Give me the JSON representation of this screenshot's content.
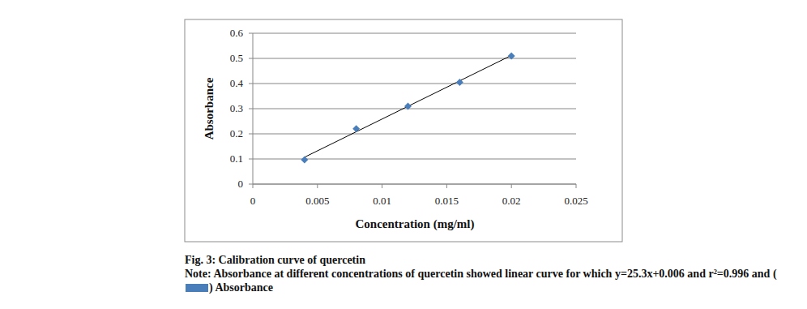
{
  "chart_data": {
    "type": "scatter",
    "xlabel": "Concentration (mg/ml)",
    "ylabel": "Absorbance",
    "caption": "Fig. 3: Calibration curve of quercetin",
    "note": "Note: Absorbance at different concentrations of quercetin showed linear curve for which y=25.3x+0.006 and r²=0.996 and (",
    "note_close": ")",
    "xlim": [
      0,
      0.025
    ],
    "xticks": [
      0,
      0.005,
      0.01,
      0.015,
      0.02,
      0.025
    ],
    "ylim": [
      0,
      0.6
    ],
    "yticks": [
      0,
      0.1,
      0.2,
      0.3,
      0.4,
      0.5,
      0.6
    ],
    "grid": true,
    "series": [
      {
        "name": "Absorbance",
        "type": "scatter",
        "marker": "diamond",
        "color": "#4a7ebb",
        "x": [
          0.004,
          0.008,
          0.012,
          0.016,
          0.02
        ],
        "values": [
          0.097,
          0.22,
          0.31,
          0.405,
          0.51
        ]
      },
      {
        "type": "line",
        "color": "#000000",
        "line_style": "solid",
        "x": [
          0.004,
          0.02
        ],
        "values": [
          0.107,
          0.512
        ]
      }
    ]
  }
}
